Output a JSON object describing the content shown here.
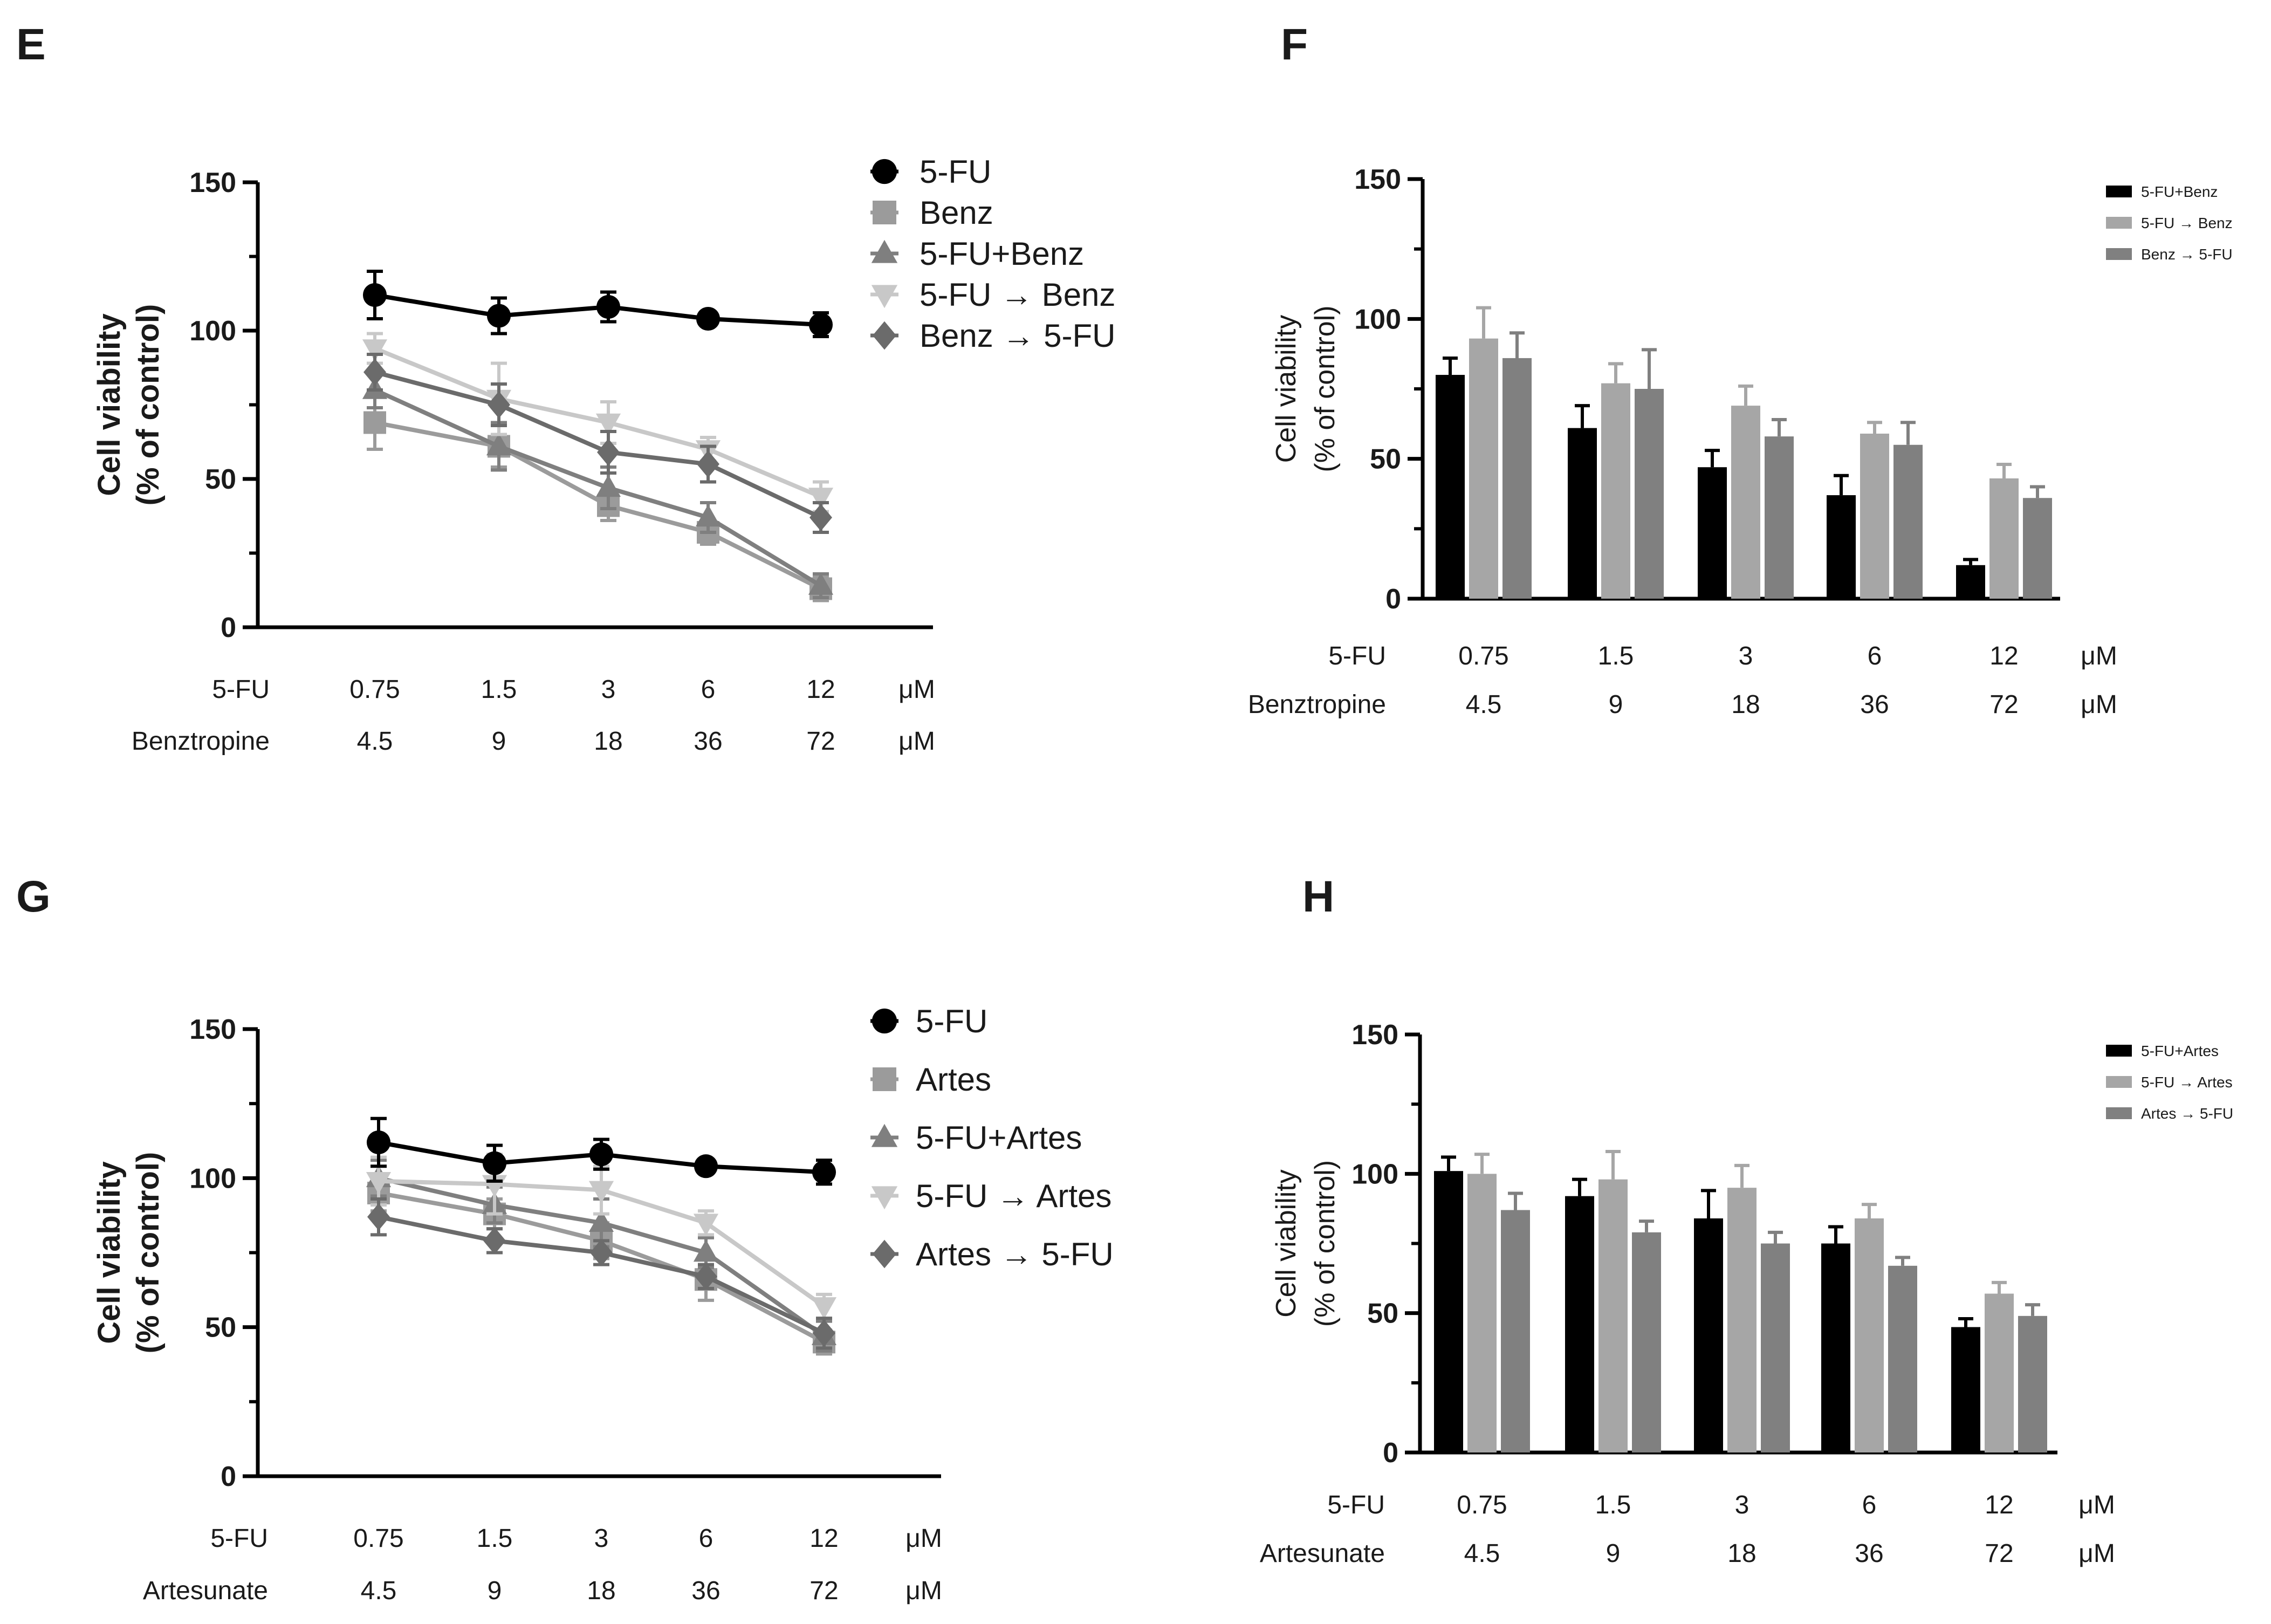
{
  "charts": [
    {
      "id": "E",
      "type": "line",
      "panel_letter": "E",
      "ylabel_line1": "Cell viability",
      "ylabel_line2": "(% of control)",
      "yticks": [
        "0",
        "50",
        "100",
        "150"
      ],
      "ylim": [
        0,
        150
      ],
      "dose_rows": [
        {
          "label": "5-FU",
          "values": [
            "0.75",
            "1.5",
            "3",
            "6",
            "12"
          ],
          "unit": "μM"
        },
        {
          "label": "Benztropine",
          "values": [
            "4.5",
            "9",
            "18",
            "36",
            "72"
          ],
          "unit": "μM"
        }
      ],
      "series": [
        {
          "name": "5-FU",
          "color": "#000000",
          "marker": "circle",
          "values": [
            112,
            105,
            108,
            104,
            102
          ],
          "errors": [
            8,
            6,
            5,
            2,
            4
          ]
        },
        {
          "name": "Benz",
          "color": "#9b9b9b",
          "marker": "square",
          "values": [
            69,
            61,
            41,
            32,
            13
          ],
          "errors": [
            9,
            7,
            5,
            4,
            4
          ]
        },
        {
          "name": "5-FU+Benz",
          "color": "#7f7f7f",
          "marker": "triangle",
          "values": [
            80,
            61,
            47,
            37,
            14
          ],
          "errors": [
            6,
            8,
            7,
            5,
            4
          ]
        },
        {
          "name": "5-FU → Benz",
          "color": "#c8c8c8",
          "marker": "triangle-down",
          "values": [
            94,
            77,
            69,
            60,
            44
          ],
          "errors": [
            5,
            12,
            7,
            4,
            5
          ]
        },
        {
          "name": "Benz → 5-FU",
          "color": "#6b6b6b",
          "marker": "diamond",
          "values": [
            86,
            75,
            59,
            55,
            37
          ],
          "errors": [
            6,
            7,
            7,
            6,
            5
          ]
        }
      ]
    },
    {
      "id": "F",
      "type": "bar",
      "panel_letter": "F",
      "ylabel_line1": "Cell viability",
      "ylabel_line2": "(% of control)",
      "yticks": [
        "0",
        "50",
        "100",
        "150"
      ],
      "ylim": [
        0,
        150
      ],
      "dose_rows": [
        {
          "label": "5-FU",
          "values": [
            "0.75",
            "1.5",
            "3",
            "6",
            "12"
          ],
          "unit": "μM"
        },
        {
          "label": "Benztropine",
          "values": [
            "4.5",
            "9",
            "18",
            "36",
            "72"
          ],
          "unit": "μM"
        }
      ],
      "series": [
        {
          "name": "5-FU+Benz",
          "color": "#000000",
          "values": [
            80,
            61,
            47,
            37,
            12
          ],
          "errors": [
            6,
            8,
            6,
            7,
            2
          ]
        },
        {
          "name": "5-FU → Benz",
          "color": "#a6a6a6",
          "values": [
            93,
            77,
            69,
            59,
            43
          ],
          "errors": [
            11,
            7,
            7,
            4,
            5
          ]
        },
        {
          "name": "Benz → 5-FU",
          "color": "#808080",
          "values": [
            86,
            75,
            58,
            55,
            36
          ],
          "errors": [
            9,
            14,
            6,
            8,
            4
          ]
        }
      ]
    },
    {
      "id": "G",
      "type": "line",
      "panel_letter": "G",
      "ylabel_line1": "Cell viability",
      "ylabel_line2": "(% of control)",
      "yticks": [
        "0",
        "50",
        "100",
        "150"
      ],
      "ylim": [
        0,
        150
      ],
      "dose_rows": [
        {
          "label": "5-FU",
          "values": [
            "0.75",
            "1.5",
            "3",
            "6",
            "12"
          ],
          "unit": "μM"
        },
        {
          "label": "Artesunate",
          "values": [
            "4.5",
            "9",
            "18",
            "36",
            "72"
          ],
          "unit": "μM"
        }
      ],
      "series": [
        {
          "name": "5-FU",
          "color": "#000000",
          "marker": "circle",
          "values": [
            112,
            105,
            108,
            104,
            102
          ],
          "errors": [
            8,
            6,
            5,
            2,
            4
          ]
        },
        {
          "name": "Artes",
          "color": "#9b9b9b",
          "marker": "square",
          "values": [
            95,
            88,
            79,
            66,
            45
          ],
          "errors": [
            6,
            5,
            6,
            7,
            4
          ]
        },
        {
          "name": "5-FU+Artes",
          "color": "#7f7f7f",
          "marker": "triangle",
          "values": [
            100,
            91,
            85,
            75,
            47
          ],
          "errors": [
            6,
            6,
            8,
            5,
            5
          ]
        },
        {
          "name": "5-FU → Artes",
          "color": "#c8c8c8",
          "marker": "triangle-down",
          "values": [
            99,
            98,
            96,
            85,
            57
          ],
          "errors": [
            8,
            10,
            8,
            4,
            4
          ]
        },
        {
          "name": "Artes → 5-FU",
          "color": "#6b6b6b",
          "marker": "diamond",
          "values": [
            87,
            79,
            75,
            67,
            48
          ],
          "errors": [
            6,
            4,
            4,
            4,
            5
          ]
        }
      ]
    },
    {
      "id": "H",
      "type": "bar",
      "panel_letter": "H",
      "ylabel_line1": "Cell viability",
      "ylabel_line2": "(% of control)",
      "yticks": [
        "0",
        "50",
        "100",
        "150"
      ],
      "ylim": [
        0,
        150
      ],
      "dose_rows": [
        {
          "label": "5-FU",
          "values": [
            "0.75",
            "1.5",
            "3",
            "6",
            "12"
          ],
          "unit": "μM"
        },
        {
          "label": "Artesunate",
          "values": [
            "4.5",
            "9",
            "18",
            "36",
            "72"
          ],
          "unit": "μM"
        }
      ],
      "series": [
        {
          "name": "5-FU+Artes",
          "color": "#000000",
          "values": [
            101,
            92,
            84,
            75,
            45
          ],
          "errors": [
            5,
            6,
            10,
            6,
            3
          ]
        },
        {
          "name": "5-FU → Artes",
          "color": "#a6a6a6",
          "values": [
            100,
            98,
            95,
            84,
            57
          ],
          "errors": [
            7,
            10,
            8,
            5,
            4
          ]
        },
        {
          "name": "Artes → 5-FU",
          "color": "#808080",
          "values": [
            87,
            79,
            75,
            67,
            49
          ],
          "errors": [
            6,
            4,
            4,
            3,
            4
          ]
        }
      ]
    }
  ]
}
